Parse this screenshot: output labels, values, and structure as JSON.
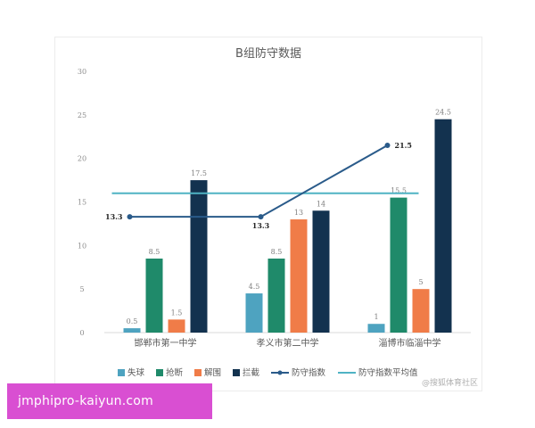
{
  "chart_data": {
    "type": "bar",
    "title": "B组防守数据",
    "categories": [
      "邯郸市第一中学",
      "孝义市第二中学",
      "淄博市临淄中学"
    ],
    "ylim": [
      0,
      30
    ],
    "yticks": [
      0,
      5,
      10,
      15,
      20,
      25,
      30
    ],
    "grid": false,
    "legend_position": "bottom",
    "series": [
      {
        "name": "失球",
        "type": "bar",
        "values": [
          0.5,
          4.5,
          1
        ],
        "color": "#4ea3c0"
      },
      {
        "name": "抢断",
        "type": "bar",
        "values": [
          8.5,
          8.5,
          15.5
        ],
        "color": "#1f8a6a"
      },
      {
        "name": "解围",
        "type": "bar",
        "values": [
          1.5,
          13,
          5
        ],
        "color": "#f07c48"
      },
      {
        "name": "拦截",
        "type": "bar",
        "values": [
          17.5,
          14,
          24.5
        ],
        "color": "#13324f"
      },
      {
        "name": "防守指数",
        "type": "line",
        "values": [
          13.3,
          13.3,
          21.5
        ],
        "color": "#2a5b8a"
      },
      {
        "name": "防守指数平均值",
        "type": "line",
        "values": [
          16,
          16,
          16
        ],
        "color": "#4fb3c4"
      }
    ],
    "bar_labels": [
      [
        "0.5",
        "8.5",
        "1.5",
        "17.5"
      ],
      [
        "4.5",
        "8.5",
        "13",
        "14"
      ],
      [
        "1",
        "15.5",
        "5",
        "24.5"
      ]
    ],
    "line_labels": [
      "13.3",
      "13.3",
      "21.5"
    ]
  },
  "watermark": "@搜狐体育社区",
  "banner": {
    "text": "jmphipro-kaiyun.com",
    "color": "#d94fd2"
  }
}
